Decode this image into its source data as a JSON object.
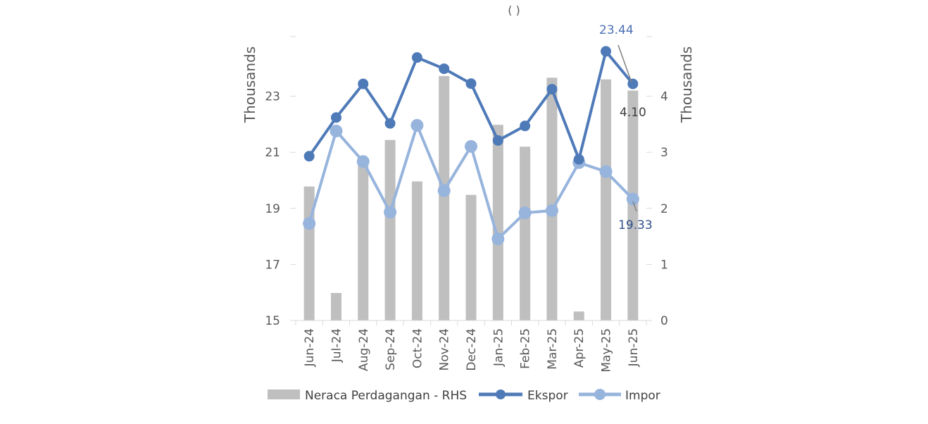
{
  "chart_data": {
    "type": "bar+line",
    "title_fragment": "(                 )",
    "categories": [
      "Jun-24",
      "Jul-24",
      "Aug-24",
      "Sep-24",
      "Oct-24",
      "Nov-24",
      "Dec-24",
      "Jan-25",
      "Feb-25",
      "Mar-25",
      "Apr-25",
      "May-25",
      "Jun-25"
    ],
    "y_left": {
      "label": "Thousands",
      "ticks": [
        "15",
        "17",
        "19",
        "21",
        "23"
      ],
      "range": [
        15,
        25
      ]
    },
    "y_right": {
      "label": "Thousands",
      "ticks": [
        "0",
        "1",
        "2",
        "3",
        "4"
      ],
      "range": [
        0,
        5
      ]
    },
    "bars": {
      "name": "Neraca Perdagangan - RHS",
      "axis": "right",
      "color": "#bfbfbf",
      "values": [
        2.39,
        0.49,
        2.78,
        3.22,
        2.48,
        4.36,
        2.24,
        3.49,
        3.1,
        4.33,
        0.16,
        4.3,
        4.1
      ]
    },
    "series": [
      {
        "name": "Ekspor",
        "axis": "left",
        "color": "#4f7ab8",
        "values": [
          20.86,
          22.24,
          23.44,
          22.03,
          24.38,
          23.98,
          23.45,
          21.42,
          21.94,
          23.25,
          20.75,
          24.6,
          23.44
        ]
      },
      {
        "name": "Impor",
        "axis": "left",
        "color": "#97b4dd",
        "values": [
          18.46,
          21.76,
          20.67,
          18.86,
          21.96,
          19.63,
          21.21,
          17.91,
          18.84,
          18.92,
          20.63,
          20.31,
          19.33
        ]
      }
    ],
    "annotations": [
      {
        "text": "23.44",
        "color": "#4a6fb5"
      },
      {
        "text": "4.10",
        "color": "#404040"
      },
      {
        "text": "19.33",
        "color": "#2f4f8f"
      }
    ],
    "legend_position": "bottom",
    "grid": false
  }
}
